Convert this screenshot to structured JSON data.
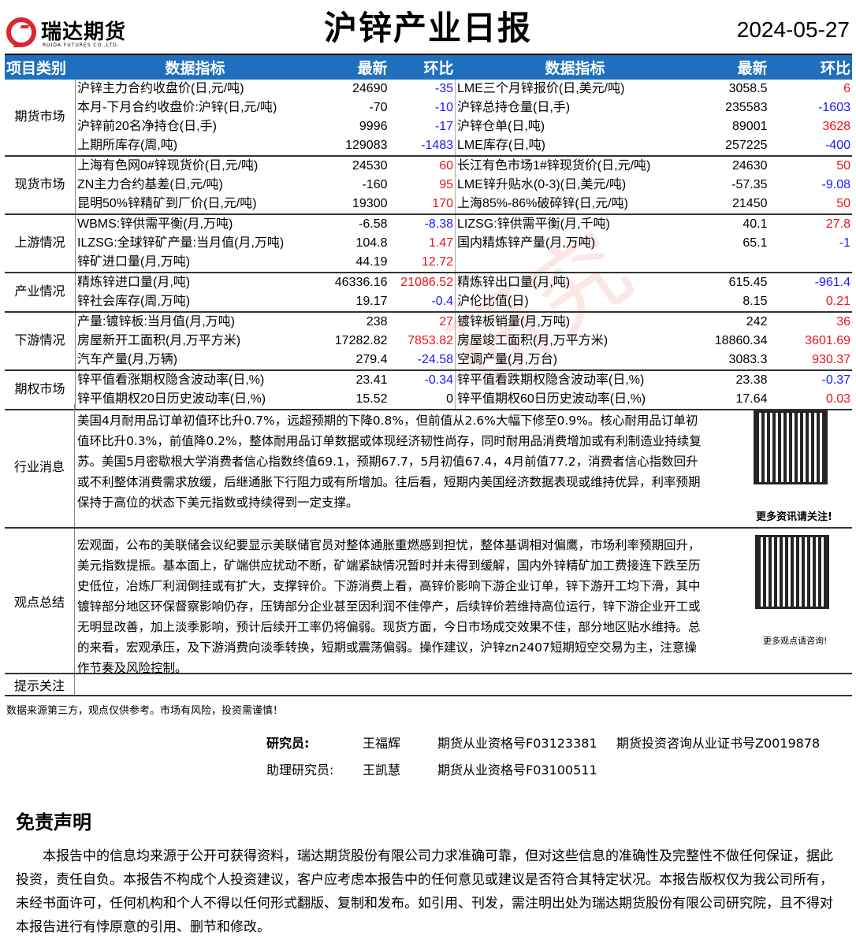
{
  "logo": {
    "cn": "瑞达期货",
    "en": "RUIDA FUTURES CO.,LTD."
  },
  "title": "沪锌产业日报",
  "date": "2024-05-27",
  "watermark": "研究",
  "headers": {
    "category": "项目类别",
    "indicator": "数据指标",
    "latest": "最新",
    "change": "环比"
  },
  "colors": {
    "up": "#e8141b",
    "down": "#1a1aff",
    "header_bg": "#1f6fbf"
  },
  "groups": [
    {
      "category": "期货市场",
      "rows": [
        [
          "沪锌主力合约收盘价(日,元/吨)",
          "24690",
          "-35",
          "LME三个月锌报价(日,美元/吨)",
          "3058.5",
          "6"
        ],
        [
          "本月-下月合约收盘价:沪锌(日,元/吨)",
          "-70",
          "-10",
          "沪锌总持仓量(日,手)",
          "235583",
          "-1603"
        ],
        [
          "沪锌前20名净持仓(日,手)",
          "9996",
          "-17",
          "沪锌仓单(日,吨)",
          "89001",
          "3628"
        ],
        [
          "上期所库存(周,吨)",
          "129083",
          "-1483",
          "LME库存(日,吨)",
          "257225",
          "-400"
        ]
      ]
    },
    {
      "category": "现货市场",
      "rows": [
        [
          "上海有色网0#锌现货价(日,元/吨)",
          "24530",
          "60",
          "长江有色市场1#锌现货价(日,元/吨)",
          "24630",
          "50"
        ],
        [
          "ZN主力合约基差(日,元/吨)",
          "-160",
          "95",
          "LME锌升贴水(0-3)(日,美元/吨)",
          "-57.35",
          "-9.08"
        ],
        [
          "昆明50%锌精矿到厂价(日,元/吨)",
          "19300",
          "170",
          "上海85%-86%破碎锌(日,元/吨)",
          "21450",
          "50"
        ]
      ]
    },
    {
      "category": "上游情况",
      "rows": [
        [
          "WBMS:锌供需平衡(月,万吨)",
          "-6.58",
          "-8.38",
          "LIZSG:锌供需平衡(月,千吨)",
          "40.1",
          "27.8"
        ],
        [
          "ILZSG:全球锌矿产量:当月值(月,万吨)",
          "104.8",
          "1.47",
          "国内精炼锌产量(月,万吨)",
          "65.1",
          "-1"
        ],
        [
          "锌矿进口量(月,万吨)",
          "44.19",
          "12.72",
          "",
          "",
          ""
        ]
      ]
    },
    {
      "category": "产业情况",
      "rows": [
        [
          "精炼锌进口量(月,吨)",
          "46336.16",
          "21086.52",
          "精炼锌出口量(月,吨)",
          "615.45",
          "-961.4"
        ],
        [
          "锌社会库存(周,万吨)",
          "19.17",
          "-0.4",
          "沪伦比值(日)",
          "8.15",
          "0.21"
        ]
      ]
    },
    {
      "category": "下游情况",
      "rows": [
        [
          "产量:镀锌板:当月值(月,万吨)",
          "238",
          "27",
          "镀锌板销量(月,万吨)",
          "242",
          "36"
        ],
        [
          "房屋新开工面积(月,万平方米)",
          "17282.82",
          "7853.82",
          "房屋竣工面积(月,万平方米)",
          "18860.34",
          "3601.69"
        ],
        [
          "汽车产量(月,万辆)",
          "279.4",
          "-24.58",
          "空调产量(月,万台)",
          "3083.3",
          "930.37"
        ]
      ]
    },
    {
      "category": "期权市场",
      "rows": [
        [
          "锌平值看涨期权隐含波动率(日,%)",
          "23.41",
          "-0.34",
          "锌平值看跌期权隐含波动率(日,%)",
          "23.38",
          "-0.37"
        ],
        [
          "锌平值期权20日历史波动率(日,%)",
          "15.52",
          "0",
          "锌平值期权60日历史波动率(日,%)",
          "17.64",
          "0.03"
        ]
      ]
    }
  ],
  "news": {
    "label": "行业消息",
    "text": "美国4月耐用品订单初值环比升0.7%，远超预期的下降0.8%，但前值从2.6%大幅下修至0.9%。核心耐用品订单初值环比升0.3%，前值降0.2%，整体耐用品订单数据或体现经济韧性尚存，同时耐用品消费增加或有利制造业持续复苏。美国5月密歇根大学消费者信心指数终值69.1，预期67.7，5月初值67.4，4月前值77.2，消费者信心指数回升或不利整体消费需求放缓，后继通胀下行阻力或有所增加。往后看，短期内美国经济数据表现或维持优异，利率预期保持于高位的状态下美元指数或持续得到一定支撑。",
    "qr_caption": "更多资讯请关注!"
  },
  "view": {
    "label": "观点总结",
    "text": "宏观面，公布的美联储会议纪要显示美联储官员对整体通胀重燃感到担忧，整体基调相对偏鹰，市场利率预期回升，美元指数提振。基本面上，矿端供应扰动不断，矿端紧缺情况暂时并未得到缓解，国内外锌精矿加工费接连下跌至历史低位，冶炼厂利润倒挂或有扩大，支撑锌价。下游消费上看，高锌价影响下游企业订单，锌下游开工均下滑，其中镀锌部分地区环保督察影响仍存，压铸部分企业甚至因利润不佳停产，后续锌价若维持高位运行，锌下游企业开工或无明显改善，加上淡季影响，预计后续开工率仍将偏弱。现货方面，今日市场成交效果不佳，部分地区贴水维持。总的来看，宏观承压，及下游消费向淡季转换，短期或震荡偏弱。操作建议，沪锌zn2407短期短空交易为主，注意操作节奏及风险控制。",
    "qr_caption": "更多观点请咨询!"
  },
  "tips": {
    "label": "提示关注",
    "text": ""
  },
  "note": "数据来源第三方，观点仅供参考。市场有风险，投资需谨慎！",
  "staff": [
    {
      "role": "研究员:",
      "name": "王福辉",
      "cert1": "期货从业资格号F03123381",
      "cert2": "期货投资咨询从业证书号Z0019878"
    },
    {
      "role": "助理研究员:",
      "name": "王凯慧",
      "cert1": "期货从业资格号F03100511",
      "cert2": ""
    }
  ],
  "disclaimer": {
    "title": "免责声明",
    "text": "本报告中的信息均来源于公开可获得资料，瑞达期货股份有限公司力求准确可靠，但对这些信息的准确性及完整性不做任何保证，据此投资，责任自负。本报告不构成个人投资建议，客户应考虑本报告中的任何意见或建议是否符合其特定状况。本报告版权仅为我公司所有，未经书面许可，任何机构和个人不得以任何形式翻版、复制和发布。如引用、刊发，需注明出处为瑞达期货股份有限公司研究院，且不得对本报告进行有悖原意的引用、删节和修改。"
  }
}
